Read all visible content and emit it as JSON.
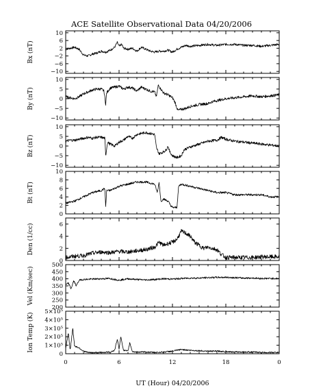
{
  "chart_data": {
    "type": "line",
    "title": "ACE Satellite Observational Data   04/20/2006",
    "xlabel": "UT (Hour)   04/20/2006",
    "x_ticks": [
      "0",
      "6",
      "12",
      "18",
      "0"
    ],
    "xlim": [
      0,
      24
    ],
    "x_minor_step": 1,
    "grid": false,
    "panels": [
      {
        "name": "Bx",
        "ylabel": "Bx (nT)",
        "ylim": [
          -11,
          11
        ],
        "yticks": [
          -10,
          -6,
          -2,
          2,
          6,
          10
        ],
        "ytick_labels": [
          "−10",
          "−6",
          "−2",
          "2",
          "6",
          "10"
        ],
        "noise": 0.6,
        "series": [
          [
            0.0,
            1.5
          ],
          [
            0.5,
            2.0
          ],
          [
            1.0,
            2.5
          ],
          [
            1.5,
            1.5
          ],
          [
            2.0,
            -1.5
          ],
          [
            2.5,
            -2.0
          ],
          [
            3.0,
            -1.0
          ],
          [
            3.5,
            -0.5
          ],
          [
            4.0,
            0.5
          ],
          [
            4.5,
            0.0
          ],
          [
            5.0,
            1.0
          ],
          [
            5.5,
            2.5
          ],
          [
            5.8,
            5.0
          ],
          [
            6.0,
            3.0
          ],
          [
            6.3,
            4.0
          ],
          [
            6.5,
            2.0
          ],
          [
            7.0,
            1.5
          ],
          [
            7.5,
            2.0
          ],
          [
            8.0,
            0.5
          ],
          [
            8.5,
            2.5
          ],
          [
            9.0,
            1.5
          ],
          [
            9.5,
            0.5
          ],
          [
            10.0,
            0.0
          ],
          [
            10.5,
            0.5
          ],
          [
            11.0,
            0.5
          ],
          [
            11.5,
            1.0
          ],
          [
            12.0,
            0.0
          ],
          [
            12.5,
            1.5
          ],
          [
            13.0,
            2.5
          ],
          [
            13.5,
            3.5
          ],
          [
            14.0,
            3.0
          ],
          [
            15.0,
            3.5
          ],
          [
            16.0,
            4.0
          ],
          [
            17.0,
            3.5
          ],
          [
            18.0,
            4.0
          ],
          [
            19.0,
            4.0
          ],
          [
            20.0,
            3.5
          ],
          [
            21.0,
            3.5
          ],
          [
            22.0,
            3.0
          ],
          [
            23.0,
            3.5
          ],
          [
            24.0,
            4.0
          ]
        ]
      },
      {
        "name": "By",
        "ylabel": "By (nT)",
        "ylim": [
          -11,
          11
        ],
        "yticks": [
          -10,
          -5,
          0,
          5,
          10
        ],
        "ytick_labels": [
          "−10",
          "−5",
          "0",
          "5",
          "10"
        ],
        "noise": 0.7,
        "series": [
          [
            0.0,
            1.0
          ],
          [
            0.5,
            0.5
          ],
          [
            1.0,
            0.0
          ],
          [
            1.5,
            1.0
          ],
          [
            2.0,
            2.5
          ],
          [
            2.5,
            3.5
          ],
          [
            3.0,
            4.5
          ],
          [
            3.5,
            5.0
          ],
          [
            4.0,
            5.0
          ],
          [
            4.3,
            4.0
          ],
          [
            4.5,
            -3.0
          ],
          [
            4.6,
            3.0
          ],
          [
            5.0,
            5.5
          ],
          [
            5.5,
            6.0
          ],
          [
            6.0,
            6.5
          ],
          [
            6.5,
            5.0
          ],
          [
            7.0,
            6.0
          ],
          [
            7.5,
            5.5
          ],
          [
            8.0,
            4.0
          ],
          [
            8.5,
            6.0
          ],
          [
            9.0,
            5.0
          ],
          [
            9.5,
            4.0
          ],
          [
            10.0,
            3.5
          ],
          [
            10.2,
            1.0
          ],
          [
            10.4,
            7.0
          ],
          [
            10.7,
            5.0
          ],
          [
            11.0,
            3.0
          ],
          [
            11.5,
            2.0
          ],
          [
            12.0,
            0.5
          ],
          [
            12.3,
            -2.0
          ],
          [
            12.6,
            -6.0
          ],
          [
            13.0,
            -5.5
          ],
          [
            13.5,
            -5.0
          ],
          [
            14.0,
            -4.0
          ],
          [
            14.5,
            -3.5
          ],
          [
            15.0,
            -3.0
          ],
          [
            16.0,
            -2.5
          ],
          [
            16.5,
            -1.5
          ],
          [
            17.0,
            -1.0
          ],
          [
            18.0,
            0.0
          ],
          [
            19.0,
            0.5
          ],
          [
            20.0,
            1.0
          ],
          [
            21.0,
            1.5
          ],
          [
            22.0,
            1.0
          ],
          [
            23.0,
            1.5
          ],
          [
            24.0,
            2.0
          ]
        ]
      },
      {
        "name": "Bz",
        "ylabel": "Bz (nT)",
        "ylim": [
          -11,
          11
        ],
        "yticks": [
          -10,
          -5,
          0,
          5,
          10
        ],
        "ytick_labels": [
          "−10",
          "−5",
          "0",
          "5",
          "10"
        ],
        "noise": 0.7,
        "series": [
          [
            0.0,
            2.5
          ],
          [
            0.5,
            3.0
          ],
          [
            1.0,
            3.0
          ],
          [
            1.5,
            3.5
          ],
          [
            2.0,
            4.0
          ],
          [
            2.5,
            4.5
          ],
          [
            3.0,
            4.0
          ],
          [
            3.5,
            4.5
          ],
          [
            4.0,
            4.5
          ],
          [
            4.4,
            4.0
          ],
          [
            4.5,
            -5.0
          ],
          [
            4.7,
            2.0
          ],
          [
            5.0,
            1.0
          ],
          [
            5.5,
            0.0
          ],
          [
            6.0,
            2.0
          ],
          [
            6.5,
            3.0
          ],
          [
            7.0,
            5.0
          ],
          [
            7.5,
            4.0
          ],
          [
            8.0,
            6.0
          ],
          [
            8.5,
            6.5
          ],
          [
            9.0,
            7.0
          ],
          [
            9.5,
            6.5
          ],
          [
            10.0,
            6.0
          ],
          [
            10.2,
            -1.0
          ],
          [
            10.5,
            -4.0
          ],
          [
            11.0,
            -3.0
          ],
          [
            11.3,
            -2.0
          ],
          [
            11.5,
            0.0
          ],
          [
            11.7,
            -3.0
          ],
          [
            12.0,
            -5.0
          ],
          [
            12.5,
            -6.0
          ],
          [
            13.0,
            -5.0
          ],
          [
            13.3,
            -2.0
          ],
          [
            13.5,
            -1.5
          ],
          [
            14.0,
            -0.5
          ],
          [
            15.0,
            1.0
          ],
          [
            16.0,
            2.5
          ],
          [
            17.0,
            3.0
          ],
          [
            17.5,
            4.5
          ],
          [
            18.0,
            3.5
          ],
          [
            19.0,
            2.5
          ],
          [
            20.0,
            2.0
          ],
          [
            21.0,
            1.5
          ],
          [
            22.0,
            1.0
          ],
          [
            23.0,
            0.5
          ],
          [
            24.0,
            0.0
          ]
        ]
      },
      {
        "name": "Bt",
        "ylabel": "Bt (nT)",
        "ylim": [
          0,
          10
        ],
        "yticks": [
          0,
          2,
          4,
          6,
          8,
          10
        ],
        "ytick_labels": [
          "0",
          "2",
          "4",
          "6",
          "8",
          "10"
        ],
        "noise": 0.25,
        "series": [
          [
            0.0,
            2.5
          ],
          [
            1.0,
            3.0
          ],
          [
            2.0,
            4.0
          ],
          [
            3.0,
            5.0
          ],
          [
            4.0,
            5.5
          ],
          [
            4.4,
            6.0
          ],
          [
            4.5,
            1.5
          ],
          [
            4.6,
            5.5
          ],
          [
            5.0,
            5.5
          ],
          [
            6.0,
            6.5
          ],
          [
            7.0,
            7.0
          ],
          [
            8.0,
            7.5
          ],
          [
            9.0,
            7.5
          ],
          [
            10.0,
            7.0
          ],
          [
            10.3,
            5.0
          ],
          [
            10.5,
            7.5
          ],
          [
            10.7,
            3.0
          ],
          [
            11.0,
            3.5
          ],
          [
            11.5,
            3.0
          ],
          [
            11.8,
            2.0
          ],
          [
            12.0,
            1.5
          ],
          [
            12.5,
            1.5
          ],
          [
            12.7,
            6.5
          ],
          [
            13.0,
            7.0
          ],
          [
            14.0,
            6.5
          ],
          [
            15.0,
            6.0
          ],
          [
            16.0,
            5.5
          ],
          [
            17.0,
            5.0
          ],
          [
            18.0,
            5.0
          ],
          [
            19.0,
            4.5
          ],
          [
            20.0,
            4.5
          ],
          [
            21.0,
            4.5
          ],
          [
            22.0,
            4.5
          ],
          [
            23.0,
            4.0
          ],
          [
            24.0,
            4.0
          ]
        ]
      },
      {
        "name": "Den",
        "ylabel": "Den (1/cc)",
        "ylim": [
          0,
          7
        ],
        "yticks": [
          0,
          2,
          4,
          6
        ],
        "ytick_labels": [
          "0",
          "2",
          "4",
          "6"
        ],
        "noise": 0.35,
        "series": [
          [
            0.0,
            0.5
          ],
          [
            1.0,
            0.7
          ],
          [
            2.0,
            0.8
          ],
          [
            3.0,
            1.2
          ],
          [
            4.0,
            1.4
          ],
          [
            5.0,
            1.3
          ],
          [
            6.0,
            1.5
          ],
          [
            7.0,
            1.4
          ],
          [
            8.0,
            1.6
          ],
          [
            9.0,
            1.8
          ],
          [
            10.0,
            2.2
          ],
          [
            10.5,
            3.0
          ],
          [
            11.0,
            2.5
          ],
          [
            11.5,
            2.8
          ],
          [
            12.0,
            3.0
          ],
          [
            12.5,
            3.5
          ],
          [
            13.0,
            4.8
          ],
          [
            13.5,
            4.5
          ],
          [
            14.0,
            4.0
          ],
          [
            14.5,
            3.0
          ],
          [
            15.0,
            2.5
          ],
          [
            15.5,
            2.0
          ],
          [
            16.0,
            2.2
          ],
          [
            17.0,
            1.8
          ],
          [
            17.5,
            1.0
          ],
          [
            18.0,
            0.5
          ],
          [
            19.0,
            0.5
          ],
          [
            20.0,
            0.5
          ],
          [
            21.0,
            0.5
          ],
          [
            22.0,
            0.6
          ],
          [
            23.0,
            0.6
          ],
          [
            24.0,
            0.6
          ]
        ]
      },
      {
        "name": "Vel",
        "ylabel": "Vel (Km/sec)",
        "ylim": [
          200,
          500
        ],
        "yticks": [
          200,
          250,
          300,
          350,
          400,
          450,
          500
        ],
        "ytick_labels": [
          "200",
          "250",
          "300",
          "350",
          "400",
          "450",
          "500"
        ],
        "noise": 6,
        "series": [
          [
            0.0,
            355
          ],
          [
            0.3,
            370
          ],
          [
            0.6,
            330
          ],
          [
            0.9,
            385
          ],
          [
            1.2,
            350
          ],
          [
            1.5,
            390
          ],
          [
            2.0,
            395
          ],
          [
            3.0,
            398
          ],
          [
            4.0,
            400
          ],
          [
            5.0,
            402
          ],
          [
            6.0,
            390
          ],
          [
            6.5,
            395
          ],
          [
            7.0,
            400
          ],
          [
            8.0,
            395
          ],
          [
            9.0,
            392
          ],
          [
            10.0,
            395
          ],
          [
            11.0,
            400
          ],
          [
            12.0,
            398
          ],
          [
            13.0,
            402
          ],
          [
            14.0,
            405
          ],
          [
            15.0,
            405
          ],
          [
            16.0,
            408
          ],
          [
            17.0,
            410
          ],
          [
            18.0,
            410
          ],
          [
            19.0,
            408
          ],
          [
            20.0,
            405
          ],
          [
            21.0,
            405
          ],
          [
            22.0,
            402
          ],
          [
            23.0,
            402
          ],
          [
            24.0,
            402
          ]
        ]
      },
      {
        "name": "Ion Temp",
        "ylabel": "Ion Temp (K)",
        "ylim": [
          0,
          500000
        ],
        "yticks": [
          0,
          100000,
          200000,
          300000,
          400000,
          500000
        ],
        "ytick_labels": [
          "0",
          "1×10⁵",
          "2×10⁵",
          "3×10⁵",
          "4×10⁵",
          "5×10⁵"
        ],
        "noise": 8000,
        "series": [
          [
            0.0,
            60000
          ],
          [
            0.3,
            250000
          ],
          [
            0.5,
            40000
          ],
          [
            0.8,
            300000
          ],
          [
            1.0,
            90000
          ],
          [
            1.5,
            70000
          ],
          [
            2.0,
            30000
          ],
          [
            2.5,
            15000
          ],
          [
            3.0,
            12000
          ],
          [
            4.0,
            15000
          ],
          [
            5.0,
            20000
          ],
          [
            5.5,
            40000
          ],
          [
            5.8,
            170000
          ],
          [
            6.0,
            60000
          ],
          [
            6.2,
            200000
          ],
          [
            6.5,
            40000
          ],
          [
            7.0,
            30000
          ],
          [
            7.2,
            130000
          ],
          [
            7.5,
            25000
          ],
          [
            8.0,
            20000
          ],
          [
            9.0,
            20000
          ],
          [
            10.0,
            15000
          ],
          [
            11.0,
            20000
          ],
          [
            12.0,
            30000
          ],
          [
            13.0,
            50000
          ],
          [
            14.0,
            40000
          ],
          [
            15.0,
            35000
          ],
          [
            16.0,
            30000
          ],
          [
            17.0,
            30000
          ],
          [
            18.0,
            25000
          ],
          [
            19.0,
            20000
          ],
          [
            20.0,
            20000
          ],
          [
            21.0,
            20000
          ],
          [
            22.0,
            15000
          ],
          [
            23.0,
            15000
          ],
          [
            24.0,
            15000
          ]
        ]
      }
    ]
  }
}
